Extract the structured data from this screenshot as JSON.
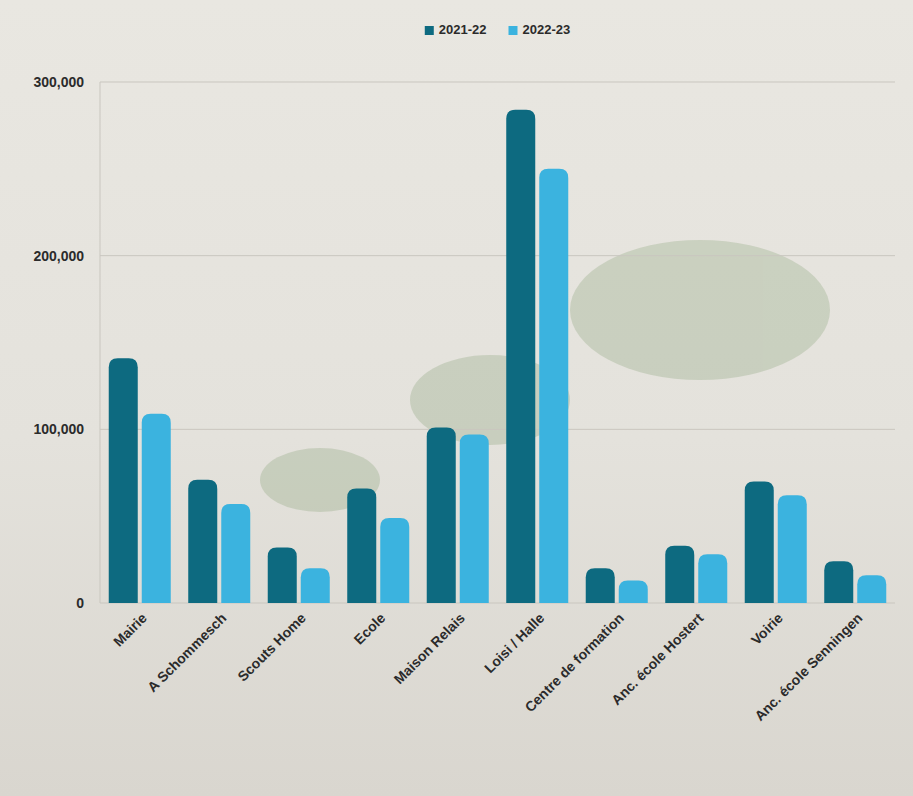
{
  "chart_data": {
    "type": "bar",
    "categories": [
      "Mairie",
      "A Schommesch",
      "Scouts Home",
      "Ecole",
      "Maison Relais",
      "Loisi / Halle",
      "Centre de formation",
      "Anc. école Hostert",
      "Voirie",
      "Anc. école Senningen"
    ],
    "series": [
      {
        "name": "2021-22",
        "color": "#0d6a80",
        "values": [
          141000,
          71000,
          32000,
          66000,
          101000,
          284000,
          20000,
          33000,
          70000,
          24000
        ]
      },
      {
        "name": "2022-23",
        "color": "#3bb3df",
        "values": [
          109000,
          57000,
          20000,
          49000,
          97000,
          250000,
          13000,
          28000,
          62000,
          16000
        ]
      }
    ],
    "ylim": [
      0,
      300000
    ],
    "yticks": [
      0,
      {
        "value": 100000,
        "label": "100,000"
      },
      {
        "value": 200000,
        "label": "200,000"
      },
      {
        "value": 300000,
        "label": "300,000"
      }
    ],
    "grid": true,
    "legend": "top"
  }
}
